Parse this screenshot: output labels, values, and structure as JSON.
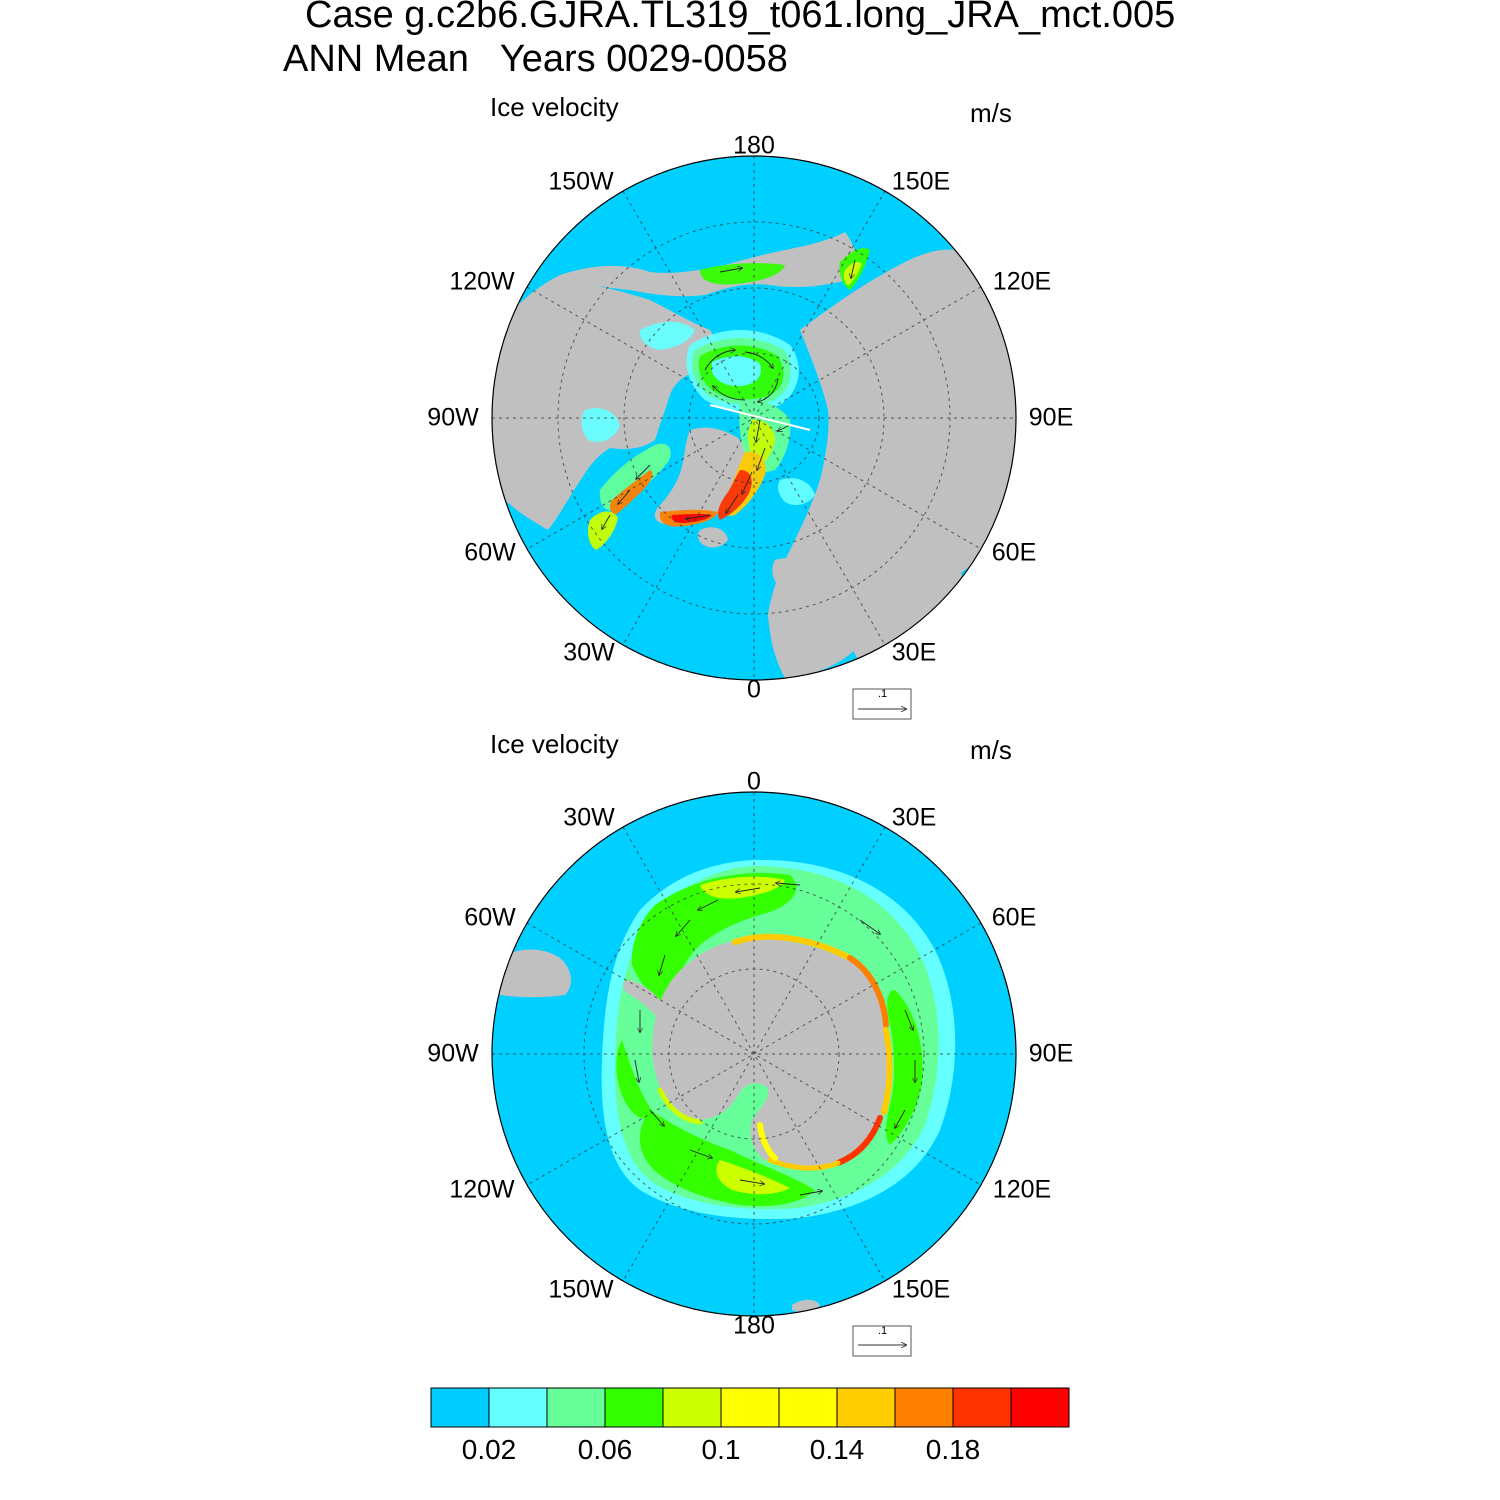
{
  "figure": {
    "title_line1": "Case g.c2b6.GJRA.TL319_t061.long_JRA_mct.005",
    "title_line2": "ANN Mean   Years 0029-0058"
  },
  "panels": [
    {
      "hemisphere": "north",
      "title": "Ice velocity",
      "units": "m/s",
      "lon_labels": [
        "180",
        "150E",
        "120E",
        "90E",
        "60E",
        "30E",
        "0",
        "30W",
        "60W",
        "90W",
        "120W",
        "150W"
      ],
      "reference_vector": ".1"
    },
    {
      "hemisphere": "south",
      "title": "Ice velocity",
      "units": "m/s",
      "lon_labels": [
        "0",
        "30E",
        "60E",
        "90E",
        "120E",
        "150E",
        "180",
        "150W",
        "120W",
        "90W",
        "60W",
        "30W"
      ],
      "reference_vector": ".1"
    }
  ],
  "chart_data": {
    "type": "heatmap",
    "projection": "polar stereographic",
    "variable": "Ice velocity",
    "units": "m/s",
    "colorbar": {
      "levels": [
        0.02,
        0.04,
        0.06,
        0.08,
        0.1,
        0.12,
        0.14,
        0.16,
        0.18,
        0.2
      ],
      "tick_labels": [
        "0.02",
        "0.06",
        "0.1",
        "0.14",
        "0.18"
      ],
      "colors": [
        "#00ccff",
        "#66ffff",
        "#66ff99",
        "#33ff00",
        "#ccff00",
        "#ffff00",
        "#ffff00",
        "#ffcc00",
        "#ff8000",
        "#ff3300",
        "#ff0000"
      ]
    },
    "land_color": "#c0c0c0",
    "ocean_color": "#00d0ff"
  }
}
